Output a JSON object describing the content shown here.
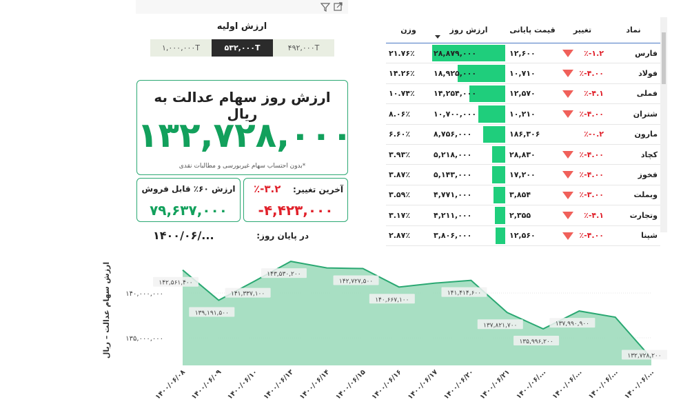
{
  "initial_value": {
    "title": "ارزش اولیه",
    "options": [
      "۱,۰۰۰,۰۰۰T",
      "۵۳۲,۰۰۰T",
      "۴۹۲,۰۰۰T"
    ],
    "selected": 1
  },
  "summary": {
    "title": "ارزش روز سهام عدالت به ریال",
    "value": "۱۳۲,۷۲۸,۰۰۰",
    "note": "*بدون احتساب سهام غیربورسی و مطالبات نقدی"
  },
  "last_change": {
    "label": "آخرین تغییر:",
    "percent": "٪-۳.۲",
    "amount": "-۴,۴۲۳,۰۰۰"
  },
  "sellable": {
    "label": "ارزش ۶۰٪ قابل فروش",
    "value": "۷۹,۶۳۷,۰۰۰"
  },
  "end_of_day": {
    "label": "در پایان روز:",
    "date": "۱۴۰۰/۰۶/..."
  },
  "table": {
    "columns": [
      "نماد",
      "تغییر",
      "قیمت پایانی",
      "ارزش روز",
      "وزن"
    ],
    "rows": [
      [
        "فارس",
        "٪-۱.۲",
        "۱۲,۶۰۰",
        "۲۸,۸۷۹,۰۰۰",
        "۲۱.۷۶٪"
      ],
      [
        "فولاد",
        "٪-۴.۰۰",
        "۱۰,۷۱۰",
        "۱۸,۹۲۵,۰۰۰",
        "۱۴.۲۶٪"
      ],
      [
        "فملی",
        "٪-۴.۱",
        "۱۲,۵۷۰",
        "۱۴,۲۵۴,۰۰۰",
        "۱۰.۷۴٪"
      ],
      [
        "شتران",
        "٪-۴.۰۰",
        "۱۰,۲۱۰",
        "۱۰,۷۰۰,۰۰۰",
        "۸.۰۶٪"
      ],
      [
        "مارون",
        "٪-۰.۲",
        "۱۸۶,۳۰۶",
        "۸,۷۵۶,۰۰۰",
        "۶.۶۰٪"
      ],
      [
        "کچاد",
        "٪-۴.۰۰",
        "۲۸,۸۳۰",
        "۵,۲۱۸,۰۰۰",
        "۳.۹۳٪"
      ],
      [
        "فخوز",
        "٪-۴.۰۰",
        "۱۷,۲۰۰",
        "۵,۱۴۳,۰۰۰",
        "۳.۸۷٪"
      ],
      [
        "وبملت",
        "٪-۳.۰۰",
        "۳,۸۵۴",
        "۴,۷۷۱,۰۰۰",
        "۳.۵۹٪"
      ],
      [
        "وتجارت",
        "٪-۴.۱",
        "۲,۳۵۵",
        "۴,۲۱۱,۰۰۰",
        "۳.۱۷٪"
      ],
      [
        "شپنا",
        "٪-۴.۰۰",
        "۱۲,۵۶۰",
        "۳,۸۰۶,۰۰۰",
        "۲.۸۷٪"
      ]
    ],
    "indicators": [
      "down",
      "down",
      "down",
      "down",
      null,
      "down",
      "down",
      "down",
      "down",
      "down"
    ],
    "bar_color": "#1fce7c"
  },
  "chart_data": {
    "type": "area",
    "y_label": "ارزش سهام عدالت – ریال",
    "categories": [
      "۱۴۰۰/۰۶/۰۸",
      "۱۴۰۰/۰۶/۰۹",
      "۱۴۰۰/۰۶/۱۰",
      "۱۴۰۰/۰۶/۱۳",
      "۱۴۰۰/۰۶/۱۴",
      "۱۴۰۰/۰۶/۱۵",
      "۱۴۰۰/۰۶/۱۶",
      "۱۴۰۰/۰۶/۱۷",
      "۱۴۰۰/۰۶/۲۰",
      "۱۴۰۰/۰۶/۲۱",
      "۱۴۰۰/۰۶/...",
      "۱۴۰۰/۰۶/...",
      "۱۴۰۰/۰۶/...",
      "۱۴۰۰/۰۶/..."
    ],
    "values": [
      142561400,
      139191500,
      141337100,
      143530200,
      142800000,
      142727500,
      140667100,
      141100000,
      141414600,
      137821700,
      135996200,
      137990900,
      137300000,
      132728200
    ],
    "value_labels": [
      "۱۴۲,۵۶۱,۴۰۰",
      "۱۳۹,۱۹۱,۵۰۰",
      "۱۴۱,۳۳۷,۱۰۰",
      "۱۴۳,۵۳۰,۲۰۰",
      null,
      "۱۴۲,۷۲۷,۵۰۰",
      "۱۴۰,۶۶۷,۱۰۰",
      null,
      "۱۴۱,۴۱۴,۶۰۰",
      "۱۳۷,۸۲۱,۷۰۰",
      "۱۳۵,۹۹۶,۲۰۰",
      "۱۳۷,۹۹۰,۹۰۰",
      null,
      "۱۳۲,۷۲۸,۲۰۰"
    ],
    "ylim": [
      131920000,
      144230000
    ],
    "yticks": [
      {
        "value": 135000000,
        "label": "۱۳۵,۰۰۰,۰۰۰"
      },
      {
        "value": 140000000,
        "label": "۱۴۰,۰۰۰,۰۰۰"
      }
    ],
    "grid": true,
    "color": "#2aa872",
    "fill": "#9fdcbd"
  }
}
